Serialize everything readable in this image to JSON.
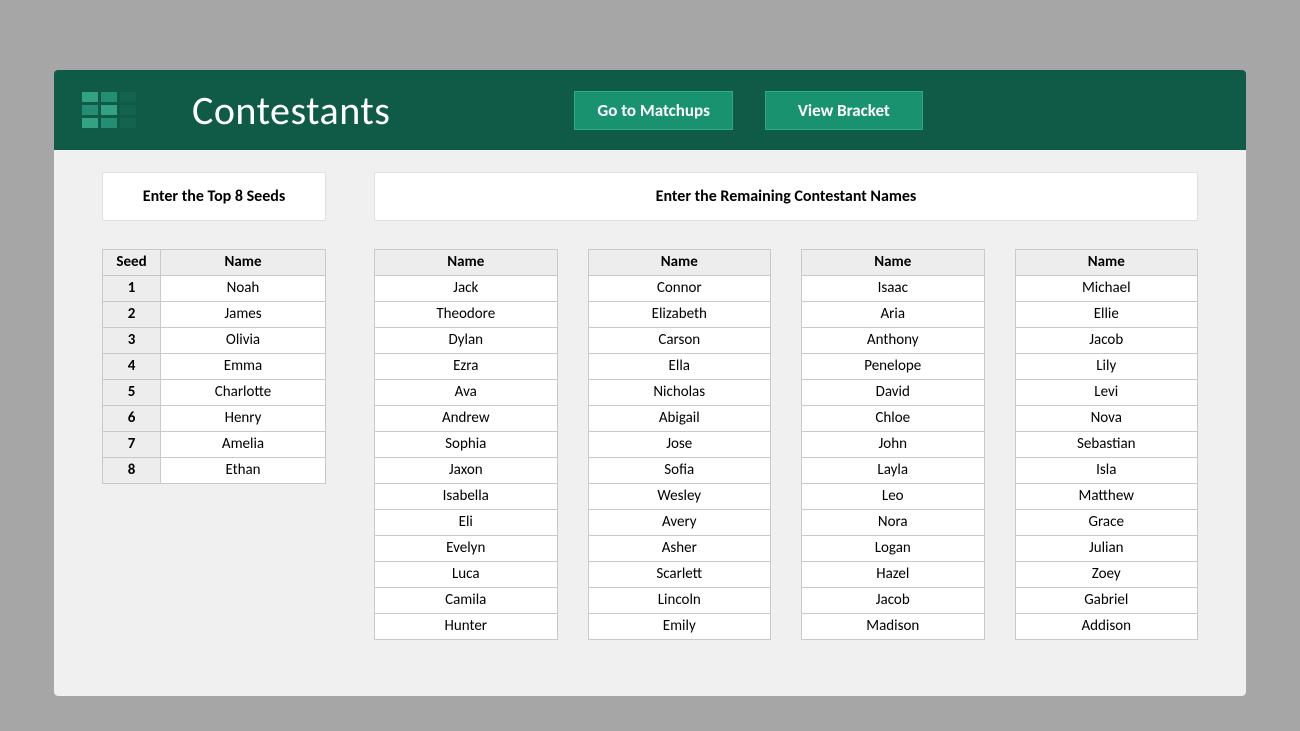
{
  "colors": {
    "page_bg": "#a6a6a6",
    "card_bg": "#0f5b47",
    "body_bg": "#f0f0f0",
    "button_bg": "#19936f",
    "button_border": "#2fa884",
    "cell_border": "#c9c9c9",
    "th_bg": "#ededed",
    "text_white": "#ffffff"
  },
  "header": {
    "title": "Contestants",
    "buttons": {
      "matchups": "Go to Matchups",
      "bracket": "View Bracket"
    }
  },
  "seeds_panel": {
    "title": "Enter the Top 8 Seeds",
    "columns": {
      "seed": "Seed",
      "name": "Name"
    },
    "rows": [
      {
        "seed": "1",
        "name": "Noah"
      },
      {
        "seed": "2",
        "name": "James"
      },
      {
        "seed": "3",
        "name": "Olivia"
      },
      {
        "seed": "4",
        "name": "Emma"
      },
      {
        "seed": "5",
        "name": "Charlotte"
      },
      {
        "seed": "6",
        "name": "Henry"
      },
      {
        "seed": "7",
        "name": "Amelia"
      },
      {
        "seed": "8",
        "name": "Ethan"
      }
    ]
  },
  "remaining_panel": {
    "title": "Enter the Remaining Contestant Names",
    "column_header": "Name",
    "columns": [
      [
        "Jack",
        "Theodore",
        "Dylan",
        "Ezra",
        "Ava",
        "Andrew",
        "Sophia",
        "Jaxon",
        "Isabella",
        "Eli",
        "Evelyn",
        "Luca",
        "Camila",
        "Hunter"
      ],
      [
        "Connor",
        "Elizabeth",
        "Carson",
        "Ella",
        "Nicholas",
        "Abigail",
        "Jose",
        "Sofia",
        "Wesley",
        "Avery",
        "Asher",
        "Scarlett",
        "Lincoln",
        "Emily"
      ],
      [
        "Isaac",
        "Aria",
        "Anthony",
        "Penelope",
        "David",
        "Chloe",
        "John",
        "Layla",
        "Leo",
        "Nora",
        "Logan",
        "Hazel",
        "Jacob",
        "Madison"
      ],
      [
        "Michael",
        "Ellie",
        "Jacob",
        "Lily",
        "Levi",
        "Nova",
        "Sebastian",
        "Isla",
        "Matthew",
        "Grace",
        "Julian",
        "Zoey",
        "Gabriel",
        "Addison"
      ]
    ]
  }
}
